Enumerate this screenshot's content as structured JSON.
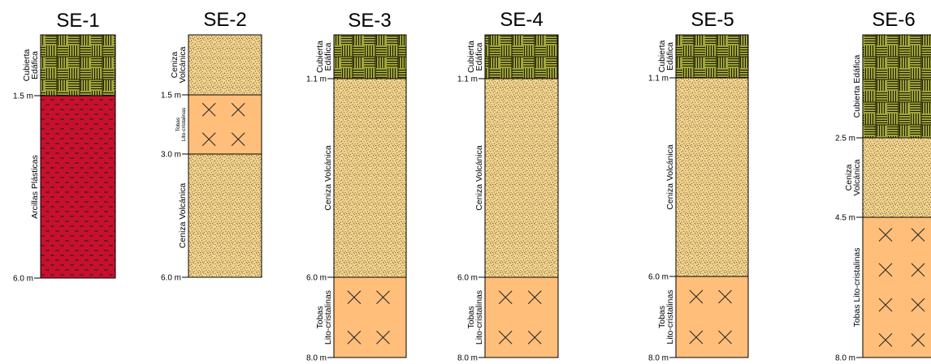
{
  "colors": {
    "soil": "#a3a83b",
    "soil_line": "#1d1d05",
    "ash": "#f3d48f",
    "ash_dot": "#3a2a0a",
    "tuff": "#ffbe7a",
    "clay": "#c8102e",
    "clay_dash": "#222222"
  },
  "columns": [
    {
      "id": "se1",
      "title": "SE-1",
      "depth_labels": [
        "1.5 m",
        "6.0 m"
      ],
      "layers": [
        {
          "type": "soil",
          "lines": [
            "Cubierta",
            "Edáfica"
          ]
        },
        {
          "type": "clay",
          "lines": [
            "Arcillas Plásticas"
          ]
        }
      ]
    },
    {
      "id": "se2",
      "title": "SE-2",
      "depth_labels": [
        "1.5 m",
        "3.0 m",
        "6.0 m"
      ],
      "layers": [
        {
          "type": "ash",
          "lines": [
            "Ceniza",
            "Volcánica"
          ]
        },
        {
          "type": "tuff",
          "lines": [
            "Tobas",
            "Lito-cristalinas"
          ]
        },
        {
          "type": "ash",
          "lines": [
            "Ceniza Volcánica"
          ]
        }
      ]
    },
    {
      "id": "se3",
      "title": "SE-3",
      "depth_labels": [
        "1.1 m",
        "6.0 m",
        "8.0 m"
      ],
      "layers": [
        {
          "type": "soil",
          "lines": [
            "Cubierta",
            "Edáfica"
          ]
        },
        {
          "type": "ash",
          "lines": [
            "Ceniza Volcánica"
          ]
        },
        {
          "type": "tuff",
          "lines": [
            "Tobas",
            "Lito-cristalinas"
          ]
        }
      ]
    },
    {
      "id": "se4",
      "title": "SE-4",
      "depth_labels": [
        "1.1 m",
        "6.0 m",
        "8.0 m"
      ],
      "layers": [
        {
          "type": "soil",
          "lines": [
            "Cubierta",
            "Edáfica"
          ]
        },
        {
          "type": "ash",
          "lines": [
            "Ceniza Volcánica"
          ]
        },
        {
          "type": "tuff",
          "lines": [
            "Tobas",
            "Lito-cristalinas"
          ]
        }
      ]
    },
    {
      "id": "se5",
      "title": "SE-5",
      "depth_labels": [
        "1.1 m",
        "6.0 m",
        "8.0 m"
      ],
      "layers": [
        {
          "type": "soil",
          "lines": [
            "Cubierta",
            "Edáfica"
          ]
        },
        {
          "type": "ash",
          "lines": [
            "Ceniza Volcánica"
          ]
        },
        {
          "type": "tuff",
          "lines": [
            "Tobas",
            "Lito-cristalinas"
          ]
        }
      ]
    },
    {
      "id": "se6",
      "title": "SE-6",
      "depth_labels": [
        "2.5 m",
        "4.5 m",
        "8.0 m"
      ],
      "layers": [
        {
          "type": "soil",
          "lines": [
            "Cubierta Edáfica"
          ]
        },
        {
          "type": "ash",
          "lines": [
            "Ceniza",
            "Volcánica"
          ]
        },
        {
          "type": "tuff",
          "lines": [
            "Tobas Lito-cristalinas"
          ]
        }
      ]
    }
  ]
}
